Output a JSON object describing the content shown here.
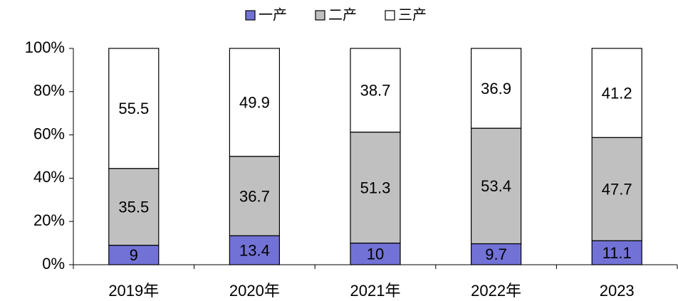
{
  "chart_data": {
    "type": "stacked_bar",
    "categories": [
      "2019年",
      "2020年",
      "2021年",
      "2022年",
      "2023"
    ],
    "series": [
      {
        "name": "一产",
        "color": "#7272d6",
        "values": [
          9,
          13.4,
          10,
          9.7,
          11.1
        ]
      },
      {
        "name": "二产",
        "color": "#c0c0c0",
        "values": [
          35.5,
          36.7,
          51.3,
          53.4,
          47.7
        ]
      },
      {
        "name": "三产",
        "color": "#ffffff",
        "values": [
          55.5,
          49.9,
          38.7,
          36.9,
          41.2
        ]
      }
    ],
    "ylim": [
      0,
      100
    ],
    "yticks": [
      {
        "value": 0,
        "label": "0%"
      },
      {
        "value": 20,
        "label": "20%"
      },
      {
        "value": 40,
        "label": "40%"
      },
      {
        "value": 60,
        "label": "60%"
      },
      {
        "value": 80,
        "label": "80%"
      },
      {
        "value": 100,
        "label": "100%"
      }
    ],
    "legend": "top"
  }
}
